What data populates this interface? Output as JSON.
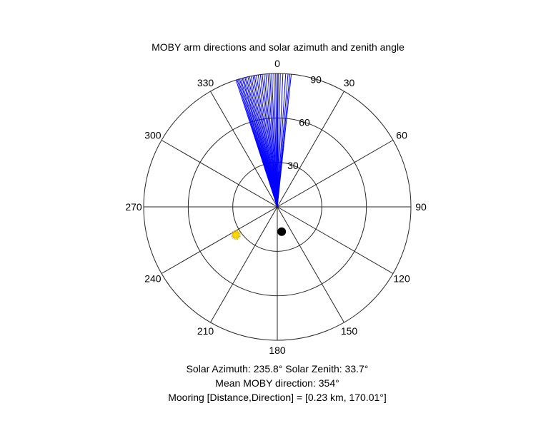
{
  "chart_data": {
    "type": "polar",
    "title": "MOBY arm directions and solar azimuth and zenith angle",
    "theta_zero": "top",
    "theta_direction": "clockwise",
    "r_range": [
      0,
      90
    ],
    "r_ticks": [
      30,
      60,
      90
    ],
    "r_tick_labels": [
      "30",
      "60",
      "90"
    ],
    "theta_ticks": [
      0,
      30,
      60,
      90,
      120,
      150,
      180,
      210,
      240,
      270,
      300,
      330
    ],
    "theta_tick_labels": [
      "0",
      "30",
      "60",
      "90",
      "120",
      "150",
      "180",
      "210",
      "240",
      "270",
      "300",
      "330"
    ],
    "grid": true,
    "arm_directions": {
      "color": "#0000ff",
      "radius": 90,
      "angles_deg": [
        342,
        342.5,
        343,
        343.6,
        344.1,
        344.8,
        345.3,
        346,
        346.6,
        347.3,
        348,
        348.7,
        349.5,
        350.2,
        351,
        351.8,
        352.7,
        353.5,
        354.3,
        355.1,
        356,
        356.8,
        357.6,
        358.5,
        359.3,
        0.4,
        1.3,
        2.4,
        3.6,
        4.6,
        5.4,
        6
      ]
    },
    "solar_position": {
      "azimuth_deg": 235.8,
      "zenith_deg": 33.7,
      "color": "#ffd700",
      "edge_color": "#e6b800",
      "marker": "sun"
    },
    "mooring_position": {
      "direction_deg": 170.01,
      "radius": 17,
      "color": "#000000",
      "marker": "filled-circle"
    },
    "annotations": [
      "Solar Azimuth: 235.8°    Solar Zenith: 33.7°",
      "Mean MOBY direction: 354°",
      "Mooring [Distance,Direction] = [0.23 km, 170.01°]"
    ]
  }
}
